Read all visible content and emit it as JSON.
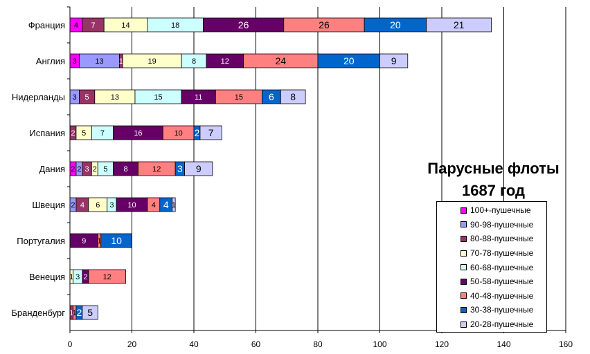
{
  "chart_data": {
    "type": "bar",
    "orientation": "horizontal",
    "stacked": true,
    "title_lines": [
      "Парусные флоты",
      "1687 год"
    ],
    "categories": [
      "Франция",
      "Англия",
      "Нидерланды",
      "Испания",
      "Дания",
      "Швеция",
      "Португалия",
      "Венеция",
      "Бранденбург"
    ],
    "xlim": [
      0,
      160
    ],
    "xticks": [
      0,
      20,
      40,
      60,
      80,
      100,
      120,
      140,
      160
    ],
    "grid": "vertical",
    "legend_position": "bottom-right",
    "series": [
      {
        "name": "100+-пушечные",
        "color": "#FF00FF",
        "values": [
          4,
          3,
          0,
          0,
          2,
          0,
          0,
          0,
          0
        ]
      },
      {
        "name": "90-98-пушечные",
        "color": "#9999FF",
        "values": [
          0,
          13,
          3,
          0,
          2,
          2,
          0,
          0,
          0
        ]
      },
      {
        "name": "80-88-пушечные",
        "color": "#993366",
        "values": [
          7,
          1,
          5,
          2,
          3,
          4,
          0,
          0,
          1
        ]
      },
      {
        "name": "70-78-пушечные",
        "color": "#FFFFCC",
        "values": [
          14,
          19,
          13,
          5,
          2,
          6,
          0,
          1,
          0
        ]
      },
      {
        "name": "60-68-пушечные",
        "color": "#CCFFFF",
        "values": [
          18,
          8,
          15,
          7,
          5,
          3,
          0,
          3,
          0
        ]
      },
      {
        "name": "50-58-пушечные",
        "color": "#660066",
        "values": [
          26,
          12,
          11,
          16,
          8,
          10,
          9,
          2,
          0
        ]
      },
      {
        "name": "40-48-пушечные",
        "color": "#FF8080",
        "values": [
          26,
          24,
          15,
          10,
          12,
          4,
          1,
          12,
          1
        ]
      },
      {
        "name": "30-38-пушечные",
        "color": "#0066CC",
        "values": [
          20,
          20,
          6,
          2,
          3,
          4,
          10,
          0,
          2
        ]
      },
      {
        "name": "20-28-пушечные",
        "color": "#CCCCFF",
        "values": [
          21,
          9,
          8,
          7,
          9,
          1,
          0,
          0,
          5
        ]
      }
    ]
  }
}
